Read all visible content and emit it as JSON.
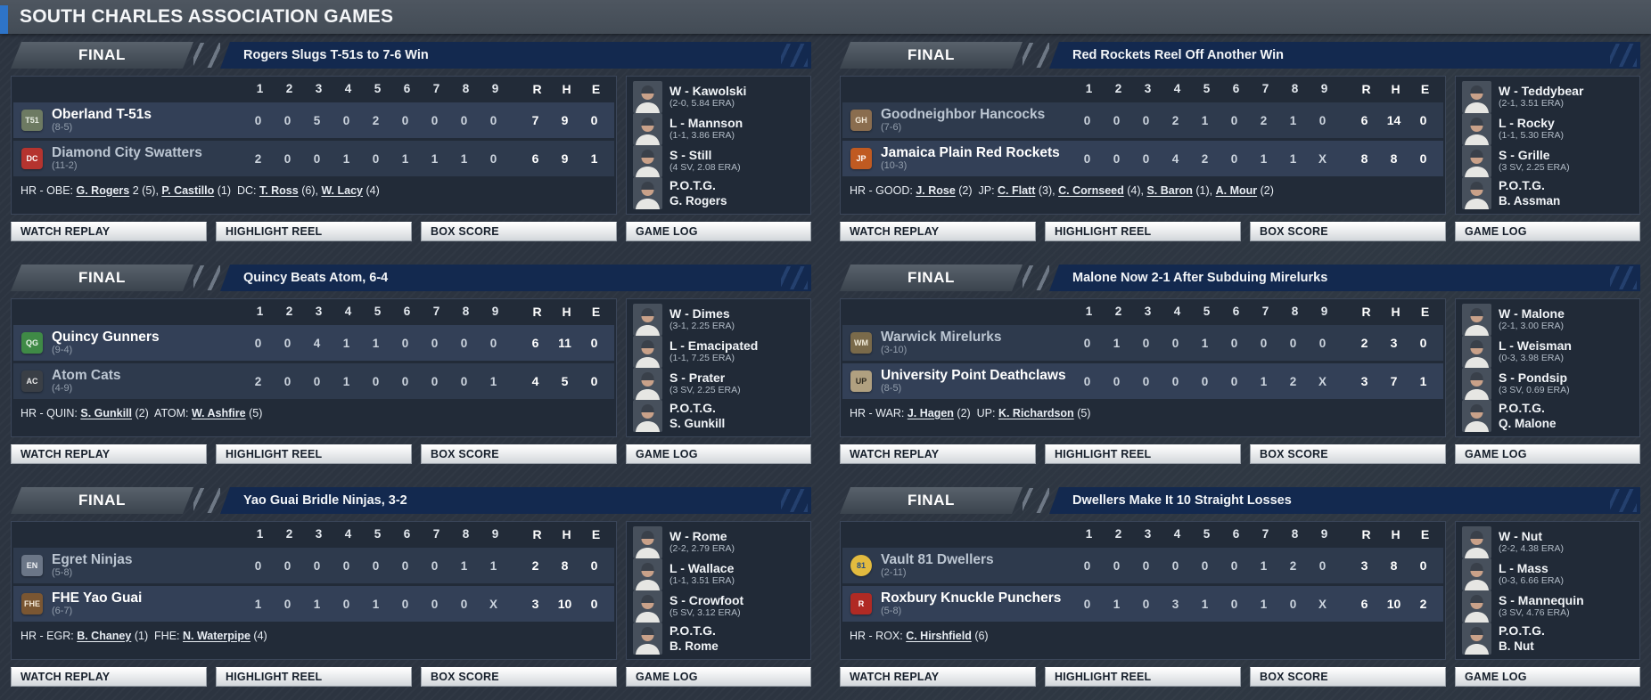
{
  "page_title": "SOUTH CHARLES ASSOCIATION GAMES",
  "status_label": "FINAL",
  "columns": [
    "1",
    "2",
    "3",
    "4",
    "5",
    "6",
    "7",
    "8",
    "9",
    "R",
    "H",
    "E"
  ],
  "buttons": [
    "WATCH REPLAY",
    "HIGHLIGHT REEL",
    "BOX SCORE",
    "GAME LOG"
  ],
  "colors": {
    "accent_blue": "#2e74c8",
    "headline_navy": "#13294f",
    "panel": "#222b38",
    "row": "#2e3a4d"
  },
  "games": [
    {
      "headline": "Rogers Slugs T-51s to 7-6 Win",
      "away": {
        "name": "Oberland T-51s",
        "record": "(8-5)",
        "winner": true,
        "innings": [
          "0",
          "0",
          "5",
          "0",
          "2",
          "0",
          "0",
          "0",
          "0"
        ],
        "r": "7",
        "h": "9",
        "e": "0",
        "logo": {
          "text": "T51",
          "bg": "#6d7a62",
          "fg": "#e9eee4"
        }
      },
      "home": {
        "name": "Diamond City Swatters",
        "record": "(11-2)",
        "winner": false,
        "innings": [
          "2",
          "0",
          "0",
          "1",
          "0",
          "1",
          "1",
          "1",
          "0"
        ],
        "r": "6",
        "h": "9",
        "e": "1",
        "logo": {
          "text": "DC",
          "bg": "#b5342f",
          "fg": "#ffffff"
        }
      },
      "hr": [
        {
          "t": "HR - OBE: "
        },
        {
          "t": "G. Rogers",
          "u": 1
        },
        {
          "t": " 2 (5), "
        },
        {
          "t": "P. Castillo",
          "u": 1
        },
        {
          "t": " (1)  DC: "
        },
        {
          "t": "T. Ross",
          "u": 1
        },
        {
          "t": " (6), "
        },
        {
          "t": "W. Lacy",
          "u": 1
        },
        {
          "t": " (4)"
        }
      ],
      "pitchers": [
        {
          "line1": "W - Kawolski",
          "line2": "(2-0, 5.84 ERA)"
        },
        {
          "line1": "L - Mannson",
          "line2": "(1-1, 3.86 ERA)"
        },
        {
          "line1": "S - Still",
          "line2": "(4 SV, 2.08 ERA)"
        },
        {
          "line1": "P.O.T.G.",
          "line2": "G. Rogers"
        }
      ]
    },
    {
      "headline": "Red Rockets Reel Off Another Win",
      "away": {
        "name": "Goodneighbor Hancocks",
        "record": "(7-6)",
        "winner": false,
        "innings": [
          "0",
          "0",
          "0",
          "2",
          "1",
          "0",
          "2",
          "1",
          "0"
        ],
        "r": "6",
        "h": "14",
        "e": "0",
        "logo": {
          "text": "GH",
          "bg": "#8a6d4f",
          "fg": "#f3e9d8"
        }
      },
      "home": {
        "name": "Jamaica Plain Red Rockets",
        "record": "(10-3)",
        "winner": true,
        "innings": [
          "0",
          "0",
          "0",
          "4",
          "2",
          "0",
          "1",
          "1",
          "X"
        ],
        "r": "8",
        "h": "8",
        "e": "0",
        "logo": {
          "text": "JP",
          "bg": "#c05a21",
          "fg": "#ffffff"
        }
      },
      "hr": [
        {
          "t": "HR - GOOD: "
        },
        {
          "t": "J. Rose",
          "u": 1
        },
        {
          "t": " (2)  JP: "
        },
        {
          "t": "C. Flatt",
          "u": 1
        },
        {
          "t": " (3), "
        },
        {
          "t": "C. Cornseed",
          "u": 1
        },
        {
          "t": " (4), "
        },
        {
          "t": "S. Baron",
          "u": 1
        },
        {
          "t": " (1), "
        },
        {
          "t": "A. Mour",
          "u": 1
        },
        {
          "t": " (2)"
        }
      ],
      "pitchers": [
        {
          "line1": "W - Teddybear",
          "line2": "(2-1, 3.51 ERA)"
        },
        {
          "line1": "L - Rocky",
          "line2": "(1-1, 5.30 ERA)"
        },
        {
          "line1": "S - Grille",
          "line2": "(3 SV, 2.25 ERA)"
        },
        {
          "line1": "P.O.T.G.",
          "line2": "B. Assman"
        }
      ]
    },
    {
      "headline": "Quincy Beats Atom, 6-4",
      "away": {
        "name": "Quincy Gunners",
        "record": "(9-4)",
        "winner": true,
        "innings": [
          "0",
          "0",
          "4",
          "1",
          "1",
          "0",
          "0",
          "0",
          "0"
        ],
        "r": "6",
        "h": "11",
        "e": "0",
        "logo": {
          "text": "QG",
          "bg": "#3f8a46",
          "fg": "#eaf5ea"
        }
      },
      "home": {
        "name": "Atom Cats",
        "record": "(4-9)",
        "winner": false,
        "innings": [
          "2",
          "0",
          "0",
          "1",
          "0",
          "0",
          "0",
          "0",
          "1"
        ],
        "r": "4",
        "h": "5",
        "e": "0",
        "logo": {
          "text": "AC",
          "bg": "#3a3f46",
          "fg": "#e9e9e9"
        }
      },
      "hr": [
        {
          "t": "HR - QUIN: "
        },
        {
          "t": "S. Gunkill",
          "u": 1
        },
        {
          "t": " (2)  ATOM: "
        },
        {
          "t": "W. Ashfire",
          "u": 1
        },
        {
          "t": " (5)"
        }
      ],
      "pitchers": [
        {
          "line1": "W - Dimes",
          "line2": "(3-1, 2.25 ERA)"
        },
        {
          "line1": "L - Emacipated",
          "line2": "(1-1, 7.25 ERA)"
        },
        {
          "line1": "S - Prater",
          "line2": "(3 SV, 2.25 ERA)"
        },
        {
          "line1": "P.O.T.G.",
          "line2": "S. Gunkill"
        }
      ]
    },
    {
      "headline": "Malone Now 2-1 After Subduing Mirelurks",
      "away": {
        "name": "Warwick Mirelurks",
        "record": "(3-10)",
        "winner": false,
        "innings": [
          "0",
          "1",
          "0",
          "0",
          "1",
          "0",
          "0",
          "0",
          "0"
        ],
        "r": "2",
        "h": "3",
        "e": "0",
        "logo": {
          "text": "WM",
          "bg": "#7a6a4a",
          "fg": "#f0ead8"
        }
      },
      "home": {
        "name": "University Point Deathclaws",
        "record": "(8-5)",
        "winner": true,
        "innings": [
          "0",
          "0",
          "0",
          "0",
          "0",
          "0",
          "1",
          "2",
          "X"
        ],
        "r": "3",
        "h": "7",
        "e": "1",
        "logo": {
          "text": "UP",
          "bg": "#b0a080",
          "fg": "#2e2a20"
        }
      },
      "hr": [
        {
          "t": "HR - WAR: "
        },
        {
          "t": "J. Hagen",
          "u": 1
        },
        {
          "t": " (2)  UP: "
        },
        {
          "t": "K. Richardson",
          "u": 1
        },
        {
          "t": " (5)"
        }
      ],
      "pitchers": [
        {
          "line1": "W - Malone",
          "line2": "(2-1, 3.00 ERA)"
        },
        {
          "line1": "L - Weisman",
          "line2": "(0-3, 3.98 ERA)"
        },
        {
          "line1": "S - Pondsip",
          "line2": "(3 SV, 0.69 ERA)"
        },
        {
          "line1": "P.O.T.G.",
          "line2": "Q. Malone"
        }
      ]
    },
    {
      "headline": "Yao Guai Bridle Ninjas, 3-2",
      "away": {
        "name": "Egret Ninjas",
        "record": "(5-8)",
        "winner": false,
        "innings": [
          "0",
          "0",
          "0",
          "0",
          "0",
          "0",
          "0",
          "1",
          "1"
        ],
        "r": "2",
        "h": "8",
        "e": "0",
        "logo": {
          "text": "EN",
          "bg": "#6b7687",
          "fg": "#f0f2f5"
        }
      },
      "home": {
        "name": "FHE Yao Guai",
        "record": "(6-7)",
        "winner": true,
        "innings": [
          "1",
          "0",
          "1",
          "0",
          "1",
          "0",
          "0",
          "0",
          "X"
        ],
        "r": "3",
        "h": "10",
        "e": "0",
        "logo": {
          "text": "FHE",
          "bg": "#7a5632",
          "fg": "#f3e8d8"
        }
      },
      "hr": [
        {
          "t": "HR - EGR: "
        },
        {
          "t": "B. Chaney",
          "u": 1
        },
        {
          "t": " (1)  FHE: "
        },
        {
          "t": "N. Waterpipe",
          "u": 1
        },
        {
          "t": " (4)"
        }
      ],
      "pitchers": [
        {
          "line1": "W - Rome",
          "line2": "(2-2, 2.79 ERA)"
        },
        {
          "line1": "L - Wallace",
          "line2": "(1-1, 3.51 ERA)"
        },
        {
          "line1": "S - Crowfoot",
          "line2": "(5 SV, 3.12 ERA)"
        },
        {
          "line1": "P.O.T.G.",
          "line2": "B. Rome"
        }
      ]
    },
    {
      "headline": "Dwellers Make It 10 Straight Losses",
      "away": {
        "name": "Vault 81 Dwellers",
        "record": "(2-11)",
        "winner": false,
        "innings": [
          "0",
          "0",
          "0",
          "0",
          "0",
          "0",
          "1",
          "2",
          "0"
        ],
        "r": "3",
        "h": "8",
        "e": "0",
        "logo": {
          "text": "81",
          "bg": "#e3bb3f",
          "fg": "#274d82",
          "shape": "circle"
        }
      },
      "home": {
        "name": "Roxbury Knuckle Punchers",
        "record": "(5-8)",
        "winner": true,
        "innings": [
          "0",
          "1",
          "0",
          "3",
          "1",
          "0",
          "1",
          "0",
          "X"
        ],
        "r": "6",
        "h": "10",
        "e": "2",
        "logo": {
          "text": "R",
          "bg": "#b02a24",
          "fg": "#ffffff"
        }
      },
      "hr": [
        {
          "t": "HR - ROX: "
        },
        {
          "t": "C. Hirshfield",
          "u": 1
        },
        {
          "t": " (6)"
        }
      ],
      "pitchers": [
        {
          "line1": "W - Nut",
          "line2": "(2-2, 4.38 ERA)"
        },
        {
          "line1": "L - Mass",
          "line2": "(0-3, 6.66 ERA)"
        },
        {
          "line1": "S - Mannequin",
          "line2": "(3 SV, 4.76 ERA)"
        },
        {
          "line1": "P.O.T.G.",
          "line2": "B. Nut"
        }
      ]
    }
  ]
}
